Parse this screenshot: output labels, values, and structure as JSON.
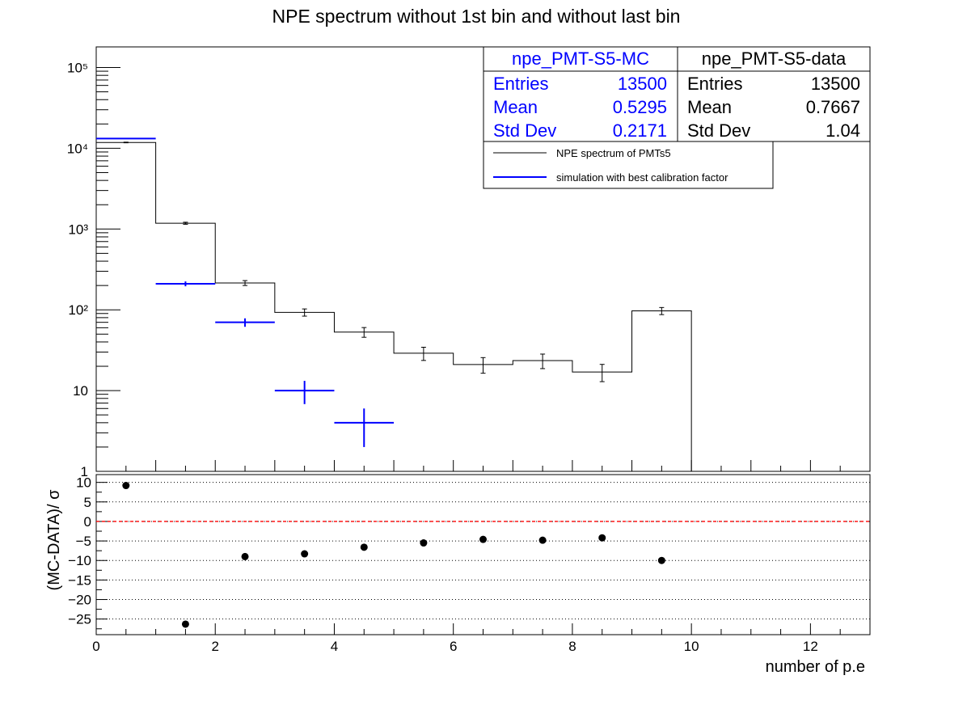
{
  "title": "NPE spectrum without 1st bin and without last bin",
  "colors": {
    "data": "#000000",
    "mc": "#0000ff",
    "zero_line": "#ff0000",
    "grid": "#000000"
  },
  "stats": {
    "mc": {
      "name": "npe_PMT-S5-MC",
      "rows": [
        {
          "label": "Entries",
          "value": "13500"
        },
        {
          "label": "Mean",
          "value": "0.5295"
        },
        {
          "label": "Std Dev",
          "value": "0.2171"
        }
      ]
    },
    "data": {
      "name": "npe_PMT-S5-data",
      "rows": [
        {
          "label": "Entries",
          "value": "13500"
        },
        {
          "label": "Mean",
          "value": "0.7667"
        },
        {
          "label": "Std Dev",
          "value": "1.04"
        }
      ]
    }
  },
  "legend": [
    {
      "label": "NPE spectrum of PMTs5",
      "color": "#000000"
    },
    {
      "label": "simulation with best calibration factor",
      "color": "#0000ff"
    }
  ],
  "chart_data": [
    {
      "type": "histogram",
      "title": "NPE spectrum without 1st bin and without last bin",
      "yscale": "log",
      "xlim": [
        0,
        13
      ],
      "ylim": [
        1,
        180000
      ],
      "y_tick_labels": [
        "1",
        "10",
        "10²",
        "10³",
        "10⁴",
        "10⁵"
      ],
      "bin_edges": [
        0,
        1,
        2,
        3,
        4,
        5,
        6,
        7,
        8,
        9,
        10
      ],
      "series": [
        {
          "name": "NPE spectrum of PMTs5",
          "style": "step",
          "x": [
            0.5,
            1.5,
            2.5,
            3.5,
            4.5,
            5.5,
            6.5,
            7.5,
            8.5,
            9.5
          ],
          "y": [
            11800,
            1180,
            215,
            93,
            53,
            29,
            21,
            23.5,
            17,
            97
          ],
          "yerr": [
            110,
            34,
            15,
            9.5,
            7.3,
            5.4,
            4.6,
            4.8,
            4.1,
            9.8
          ]
        },
        {
          "name": "simulation with best calibration factor",
          "style": "errorbar",
          "x": [
            0.5,
            1.5,
            2.5,
            3.5,
            4.5
          ],
          "y": [
            13200,
            210,
            70,
            10,
            4
          ],
          "yerr": [
            115,
            14.5,
            8.4,
            3.2,
            2
          ]
        }
      ]
    },
    {
      "type": "scatter",
      "ylabel": "(MC-DATA)/ σ",
      "xlabel": "number of p.e",
      "xlim": [
        0,
        13
      ],
      "ylim": [
        -29,
        12
      ],
      "x_ticks": [
        0,
        2,
        4,
        6,
        8,
        10,
        12
      ],
      "y_ticks": [
        10,
        5,
        0,
        -5,
        -10,
        -15,
        -20,
        -25
      ],
      "x_tick_labels": [
        "0",
        "2",
        "4",
        "6",
        "8",
        "10",
        "12"
      ],
      "y_tick_labels": [
        "10",
        "5",
        "0",
        "−5",
        "−10",
        "−15",
        "−20",
        "−25"
      ],
      "grid": "horizontal dotted",
      "reference_line": 0,
      "x": [
        0.5,
        1.5,
        2.5,
        3.5,
        4.5,
        5.5,
        6.5,
        7.5,
        8.5,
        9.5
      ],
      "y": [
        9.2,
        -26.3,
        -9,
        -8.3,
        -6.6,
        -5.5,
        -4.6,
        -4.8,
        -4.2,
        -10
      ]
    }
  ]
}
